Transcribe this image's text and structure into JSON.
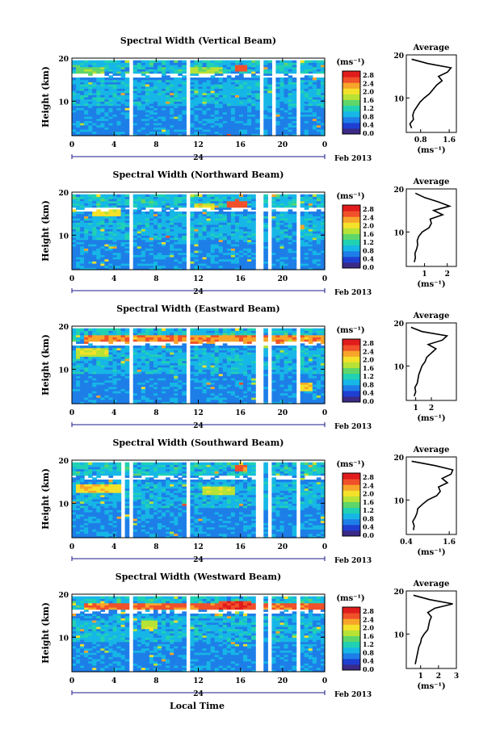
{
  "figure": {
    "xaxis_label": "Local Time",
    "date_label": "Feb 2013",
    "day_label": "24",
    "colorbar_unit": "(ms⁻¹)",
    "avg_title": "Average",
    "avg_xlabel": "(ms⁻¹)",
    "ylabel": "Height (km)"
  },
  "colors": {
    "scale": [
      "#3b2a86",
      "#1f3fd2",
      "#1e7ee8",
      "#16b7e6",
      "#20d1b4",
      "#5ed66a",
      "#b7e236",
      "#f4e12a",
      "#f7a52a",
      "#f0502a",
      "#e01c1c"
    ]
  },
  "chart_data": [
    {
      "type": "heatmap",
      "title": "Spectral Width (Vertical Beam)",
      "xlim": [
        0,
        24
      ],
      "ylim": [
        2,
        20
      ],
      "xticks": [
        "0",
        "4",
        "8",
        "12",
        "16",
        "20",
        "0"
      ],
      "yticks": [
        "10",
        "20"
      ],
      "colorbar": {
        "min": 0.0,
        "max": 2.8,
        "ticks": [
          "2.8",
          "2.4",
          "2.0",
          "1.6",
          "1.2",
          "0.8",
          "0.4",
          "0.0"
        ]
      },
      "gaps": [
        [
          5.4,
          5.8
        ],
        [
          10.8,
          11.3
        ],
        [
          17.7,
          18.1
        ],
        [
          19.0,
          19.3
        ],
        [
          21.2,
          21.6
        ]
      ],
      "hotspots": [
        [
          15.3,
          16.5,
          17.6,
          2.6
        ],
        [
          11.2,
          14.5,
          17.2,
          1.8
        ],
        [
          0.5,
          3.0,
          17.0,
          1.6
        ]
      ],
      "seed": 11,
      "average": {
        "xlim": [
          0.4,
          1.8
        ],
        "xticks": [
          "0.8",
          "1.6"
        ],
        "heights": [
          3,
          4,
          5,
          6,
          7,
          8,
          9,
          10,
          11,
          12,
          13,
          14,
          15,
          16,
          17,
          18,
          19
        ],
        "values": [
          0.55,
          0.5,
          0.6,
          0.58,
          0.62,
          0.7,
          0.78,
          0.9,
          1.05,
          1.15,
          1.25,
          1.4,
          1.3,
          1.55,
          1.65,
          1.0,
          0.55
        ]
      }
    },
    {
      "type": "heatmap",
      "title": "Spectral Width (Northward Beam)",
      "xlim": [
        0,
        24
      ],
      "ylim": [
        2,
        20
      ],
      "xticks": [
        "0",
        "4",
        "8",
        "12",
        "16",
        "20",
        "0"
      ],
      "yticks": [
        "10",
        "20"
      ],
      "colorbar": {
        "min": 0.0,
        "max": 2.8,
        "ticks": [
          "2.8",
          "2.4",
          "2.0",
          "1.6",
          "1.2",
          "0.8",
          "0.4",
          "0.0"
        ]
      },
      "gaps": [
        [
          5.4,
          5.8
        ],
        [
          10.8,
          11.3
        ],
        [
          17.6,
          18.0
        ],
        [
          18.5,
          18.8
        ],
        [
          21.2,
          21.6
        ]
      ],
      "hotspots": [
        [
          14.8,
          16.8,
          17.2,
          2.7
        ],
        [
          2.0,
          4.5,
          15.2,
          2.1
        ],
        [
          11.5,
          13.5,
          16.8,
          2.0
        ]
      ],
      "seed": 23,
      "average": {
        "xlim": [
          0.2,
          2.4
        ],
        "xticks": [
          "1",
          "2"
        ],
        "heights": [
          3,
          4,
          5,
          6,
          7,
          8,
          9,
          10,
          11,
          12,
          13,
          14,
          15,
          16,
          17,
          18,
          19
        ],
        "values": [
          0.55,
          0.6,
          0.58,
          0.65,
          0.7,
          0.68,
          0.75,
          0.9,
          1.2,
          1.3,
          1.25,
          1.8,
          1.4,
          2.1,
          1.6,
          1.0,
          0.6
        ]
      }
    },
    {
      "type": "heatmap",
      "title": "Spectral Width (Eastward Beam)",
      "xlim": [
        0,
        24
      ],
      "ylim": [
        2,
        20
      ],
      "xticks": [
        "0",
        "4",
        "8",
        "12",
        "16",
        "20",
        "0"
      ],
      "yticks": [
        "10",
        "20"
      ],
      "colorbar": {
        "min": 0.0,
        "max": 2.8,
        "ticks": [
          "2.8",
          "2.4",
          "2.0",
          "1.6",
          "1.2",
          "0.8",
          "0.4",
          "0.0"
        ]
      },
      "gaps": [
        [
          5.4,
          5.8
        ],
        [
          10.8,
          11.3
        ],
        [
          17.6,
          18.0
        ],
        [
          18.6,
          18.9
        ],
        [
          21.2,
          21.6
        ]
      ],
      "hotspots": [
        [
          1.0,
          24.0,
          17.0,
          2.5
        ],
        [
          0.5,
          3.5,
          14.0,
          2.0
        ],
        [
          21.5,
          23.0,
          6.0,
          2.2
        ]
      ],
      "seed": 37,
      "average": {
        "xlim": [
          0.4,
          3.6
        ],
        "xticks": [
          "1",
          "2"
        ],
        "heights": [
          3,
          4,
          5,
          6,
          7,
          8,
          9,
          10,
          11,
          12,
          13,
          14,
          15,
          16,
          17,
          18,
          19
        ],
        "values": [
          0.9,
          1.0,
          0.95,
          1.1,
          1.15,
          1.2,
          1.3,
          1.4,
          1.6,
          1.7,
          2.0,
          2.3,
          1.8,
          2.7,
          3.0,
          1.4,
          0.7
        ]
      }
    },
    {
      "type": "heatmap",
      "title": "Spectral Width (Southward Beam)",
      "xlim": [
        0,
        24
      ],
      "ylim": [
        2,
        20
      ],
      "xticks": [
        "0",
        "4",
        "8",
        "12",
        "16",
        "20",
        "0"
      ],
      "yticks": [
        "10",
        "20"
      ],
      "colorbar": {
        "min": 0.0,
        "max": 2.8,
        "ticks": [
          "2.8",
          "2.4",
          "2.0",
          "1.6",
          "1.2",
          "0.8",
          "0.4",
          "0.0"
        ]
      },
      "gaps": [
        [
          4.6,
          5.0
        ],
        [
          5.4,
          5.8
        ],
        [
          10.8,
          11.3
        ],
        [
          17.6,
          18.0
        ],
        [
          18.6,
          18.9
        ],
        [
          21.2,
          21.6
        ]
      ],
      "hotspots": [
        [
          15.5,
          16.5,
          18.2,
          2.6
        ],
        [
          0.5,
          4.5,
          13.5,
          2.2
        ],
        [
          12.5,
          15.5,
          13.0,
          1.9
        ]
      ],
      "seed": 53,
      "average": {
        "xlim": [
          0.4,
          1.8
        ],
        "xticks": [
          "0.4",
          "1.6"
        ],
        "heights": [
          3,
          4,
          5,
          6,
          7,
          8,
          9,
          10,
          11,
          12,
          13,
          14,
          15,
          16,
          17,
          18,
          19
        ],
        "values": [
          0.6,
          0.62,
          0.58,
          0.65,
          0.7,
          0.72,
          0.85,
          1.0,
          1.25,
          1.35,
          1.3,
          1.55,
          1.4,
          1.65,
          1.7,
          1.2,
          0.55
        ]
      }
    },
    {
      "type": "heatmap",
      "title": "Spectral Width (Westward Beam)",
      "xlim": [
        0,
        24
      ],
      "ylim": [
        2,
        20
      ],
      "xticks": [
        "0",
        "4",
        "8",
        "12",
        "16",
        "20",
        "0"
      ],
      "yticks": [
        "10",
        "20"
      ],
      "colorbar": {
        "min": 0.0,
        "max": 2.8,
        "ticks": [
          "2.8",
          "2.4",
          "2.0",
          "1.6",
          "1.2",
          "0.8",
          "0.4",
          "0.0"
        ]
      },
      "gaps": [
        [
          5.4,
          5.8
        ],
        [
          10.8,
          11.3
        ],
        [
          17.6,
          18.0
        ],
        [
          18.6,
          18.9
        ],
        [
          21.2,
          21.6
        ]
      ],
      "hotspots": [
        [
          1.0,
          24.0,
          17.2,
          2.6
        ],
        [
          14.0,
          17.0,
          17.5,
          2.8
        ],
        [
          6.5,
          8.0,
          13.0,
          1.9
        ]
      ],
      "seed": 71,
      "average": {
        "xlim": [
          0.2,
          3.0
        ],
        "xticks": [
          "1",
          "2",
          "3"
        ],
        "heights": [
          3,
          4,
          5,
          6,
          7,
          8,
          9,
          10,
          11,
          12,
          13,
          14,
          15,
          16,
          17,
          18,
          19
        ],
        "values": [
          0.7,
          0.75,
          0.8,
          0.85,
          0.9,
          1.0,
          1.05,
          1.2,
          1.4,
          1.45,
          1.5,
          1.6,
          1.4,
          1.8,
          2.8,
          1.5,
          0.6
        ]
      }
    }
  ]
}
